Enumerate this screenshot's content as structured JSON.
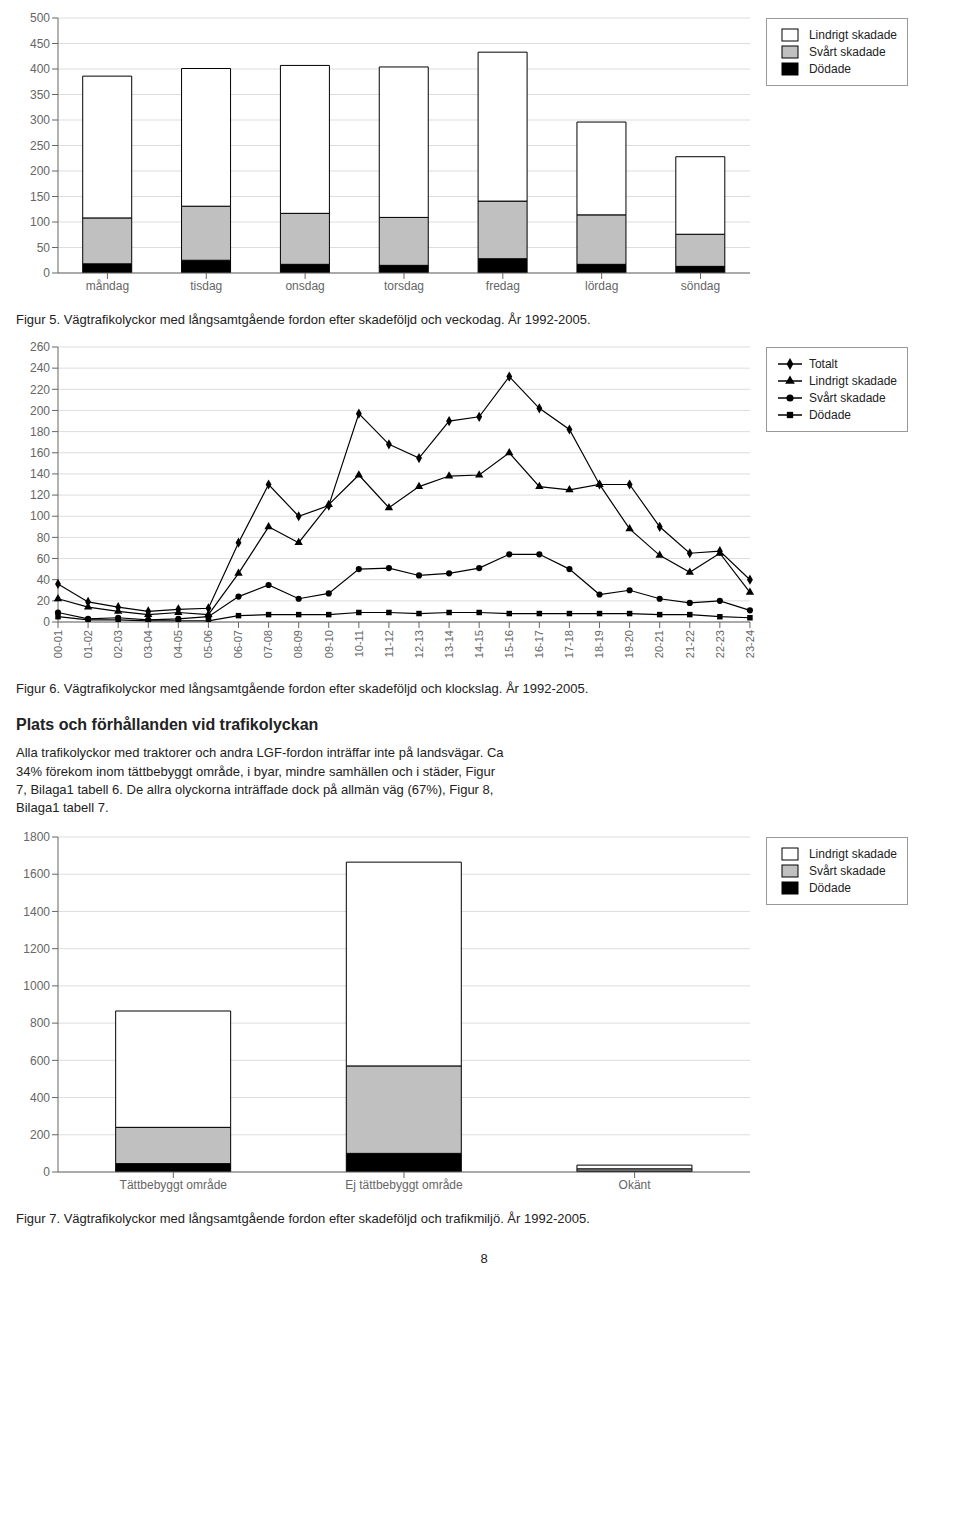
{
  "chart_data": [
    {
      "type": "bar",
      "title": "Figur 5. Vägtrafikolyckor med långsamtgående fordon efter skadeföljd och veckodag. År 1992-2005.",
      "categories": [
        "måndag",
        "tisdag",
        "onsdag",
        "torsdag",
        "fredag",
        "lördag",
        "söndag"
      ],
      "series": [
        {
          "name": "Lindrigt skadade",
          "color": "#ffffff",
          "values": [
            278,
            270,
            290,
            295,
            292,
            182,
            152
          ]
        },
        {
          "name": "Svårt skadade",
          "color": "#c0c0c0",
          "values": [
            90,
            106,
            100,
            94,
            113,
            97,
            63
          ]
        },
        {
          "name": "Dödade",
          "color": "#000000",
          "values": [
            18,
            25,
            17,
            15,
            28,
            17,
            13
          ]
        }
      ],
      "stacked": true,
      "ylim": [
        0,
        500
      ],
      "yticks": [
        0,
        50,
        100,
        150,
        200,
        250,
        300,
        350,
        400,
        450,
        500
      ],
      "grid": true,
      "legend": "upper right"
    },
    {
      "type": "line",
      "title": "Figur 6. Vägtrafikolyckor med långsamtgående fordon efter skadeföljd och klockslag. År 1992-2005.",
      "categories": [
        "00-01",
        "01-02",
        "02-03",
        "03-04",
        "04-05",
        "05-06",
        "06-07",
        "07-08",
        "08-09",
        "09-10",
        "10-11",
        "11-12",
        "12-13",
        "13-14",
        "14-15",
        "15-16",
        "16-17",
        "17-18",
        "18-19",
        "19-20",
        "20-21",
        "21-22",
        "22-23",
        "23-24"
      ],
      "series": [
        {
          "name": "Totalt",
          "color": "#000000",
          "marker": "diamond",
          "values": [
            36,
            19,
            14,
            10,
            12,
            13,
            75,
            130,
            100,
            110,
            197,
            168,
            155,
            190,
            194,
            232,
            202,
            182,
            130,
            130,
            90,
            65,
            67,
            40
          ]
        },
        {
          "name": "Lindrigt skadade",
          "color": "#000000",
          "marker": "triangle",
          "values": [
            22,
            14,
            10,
            7,
            9,
            7,
            46,
            90,
            75,
            111,
            139,
            108,
            128,
            138,
            139,
            160,
            128,
            125,
            130,
            88,
            63,
            47,
            65,
            28
          ]
        },
        {
          "name": "Svårt skadade",
          "color": "#000000",
          "marker": "circle",
          "values": [
            9,
            3,
            4,
            2,
            3,
            5,
            24,
            35,
            22,
            27,
            50,
            51,
            44,
            46,
            51,
            64,
            64,
            50,
            26,
            30,
            22,
            18,
            20,
            11
          ]
        },
        {
          "name": "Dödade",
          "color": "#000000",
          "marker": "square",
          "values": [
            5,
            2,
            2,
            1,
            1,
            1,
            6,
            7,
            7,
            7,
            9,
            9,
            8,
            9,
            9,
            8,
            8,
            8,
            8,
            8,
            7,
            7,
            5,
            4
          ]
        }
      ],
      "ylim": [
        0,
        260
      ],
      "yticks": [
        0,
        20,
        40,
        60,
        80,
        100,
        120,
        140,
        160,
        180,
        200,
        220,
        240,
        260
      ],
      "grid": true,
      "legend": "upper right",
      "annotations": [
        "Plats och förhållanden vid trafikolyckan",
        "Alla trafikolyckor med traktorer och andra LGF-fordon inträffar inte på landsvägar. Ca\n34% förekom inom tättbebyggt område, i byar, mindre samhällen och i städer, Figur\n7, Bilaga1 tabell 6. De allra olyckorna inträffade dock på allmän väg (67%), Figur 8,\nBilaga1 tabell 7."
      ]
    },
    {
      "type": "bar",
      "title": "Figur 7. Vägtrafikolyckor med långsamtgående fordon efter skadeföljd och trafikmiljö. År 1992-2005.",
      "categories": [
        "Tättbebyggt område",
        "Ej tättbebyggt område",
        "Okänt"
      ],
      "series": [
        {
          "name": "Lindrigt skadade",
          "color": "#ffffff",
          "values": [
            625,
            1095,
            20
          ]
        },
        {
          "name": "Svårt skadade",
          "color": "#c0c0c0",
          "values": [
            195,
            470,
            12
          ]
        },
        {
          "name": "Dödade",
          "color": "#000000",
          "values": [
            45,
            100,
            5
          ]
        }
      ],
      "stacked": true,
      "ylim": [
        0,
        1800
      ],
      "yticks": [
        0,
        200,
        400,
        600,
        800,
        1000,
        1200,
        1400,
        1600,
        1800
      ],
      "grid": true,
      "legend": "upper right",
      "annotations": [
        "8"
      ]
    }
  ]
}
